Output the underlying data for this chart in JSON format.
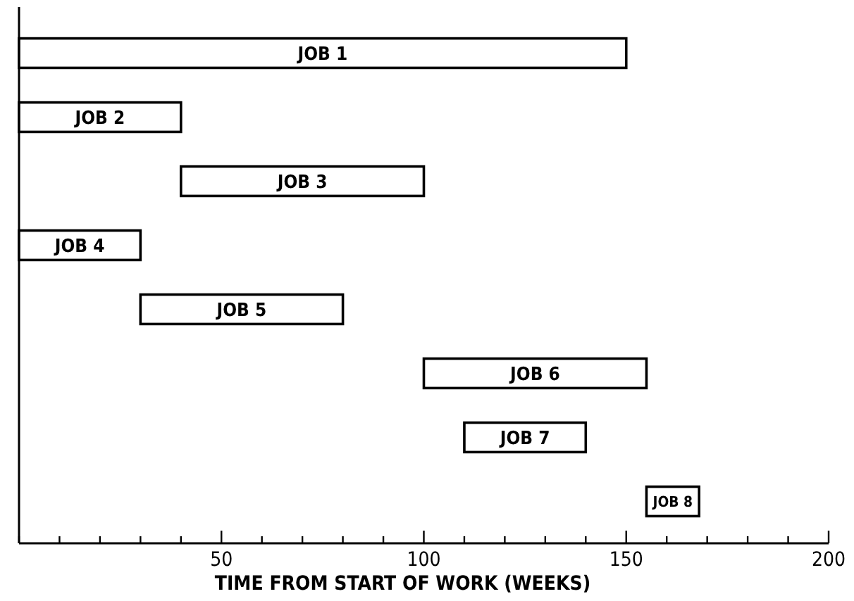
{
  "chart_data": {
    "type": "bar",
    "orientation": "horizontal",
    "xlabel": "TIME FROM START OF WORK (WEEKS)",
    "categories": [
      "JOB 1",
      "JOB 2",
      "JOB 3",
      "JOB 4",
      "JOB 5",
      "JOB 6",
      "JOB 7",
      "JOB 8"
    ],
    "base": [
      0,
      0,
      40,
      0,
      30,
      100,
      110,
      155
    ],
    "values": [
      150,
      40,
      60,
      30,
      50,
      55,
      30,
      13
    ],
    "color": "#ffffff",
    "xlim": [
      0,
      200
    ],
    "xticks": [
      {
        "value": 0,
        "label": null
      },
      {
        "value": 10,
        "label": null
      },
      {
        "value": 20,
        "label": null
      },
      {
        "value": 30,
        "label": null
      },
      {
        "value": 40,
        "label": null
      },
      50,
      {
        "value": 60,
        "label": null
      },
      {
        "value": 70,
        "label": null
      },
      {
        "value": 80,
        "label": null
      },
      {
        "value": 90,
        "label": null
      },
      100,
      {
        "value": 110,
        "label": null
      },
      {
        "value": 120,
        "label": null
      },
      {
        "value": 130,
        "label": null
      },
      {
        "value": 140,
        "label": null
      },
      150,
      {
        "value": 160,
        "label": null
      },
      {
        "value": 170,
        "label": null
      },
      {
        "value": 180,
        "label": null
      },
      {
        "value": 190,
        "label": null
      },
      200
    ],
    "tick_labels": "x",
    "grid": false
  }
}
